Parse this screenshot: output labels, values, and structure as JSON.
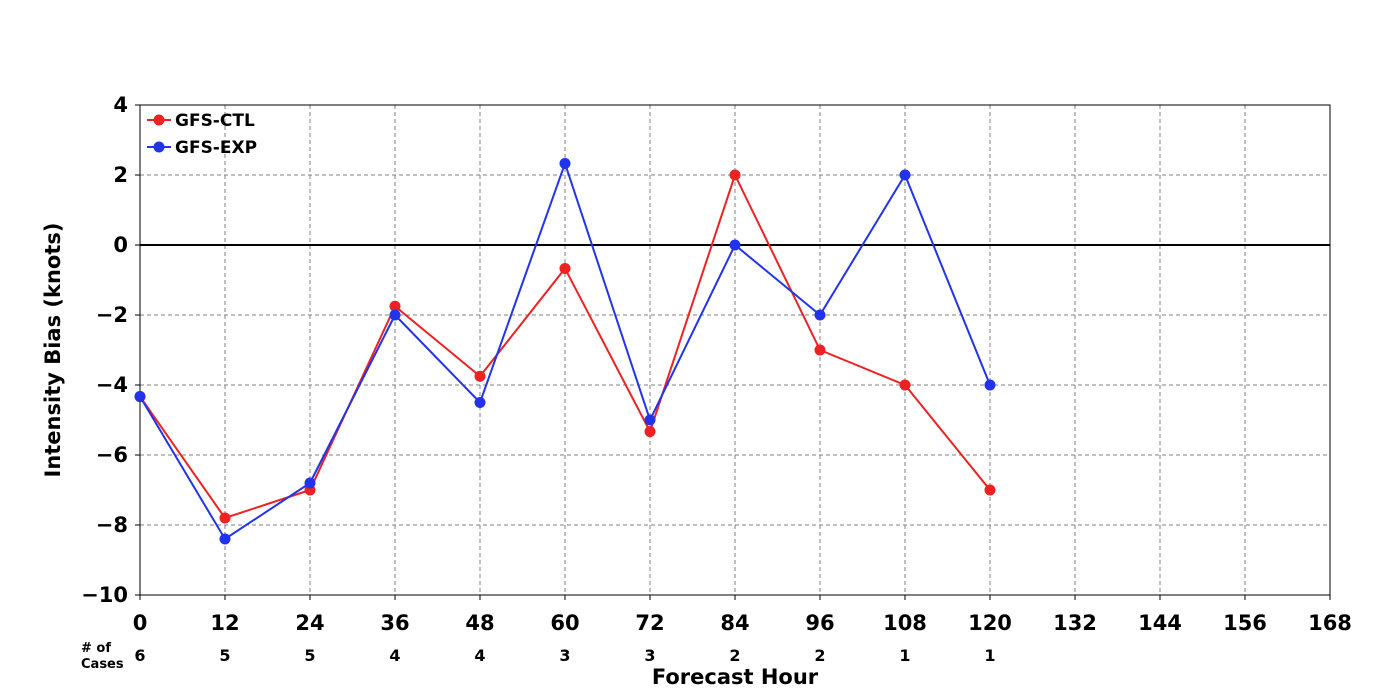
{
  "chart_data": {
    "type": "line",
    "xlabel": "Forecast Hour",
    "ylabel": "Intensity Bias (knots)",
    "xlim": [
      0,
      168
    ],
    "ylim": [
      -10,
      4
    ],
    "x_ticks": [
      0,
      12,
      24,
      36,
      48,
      60,
      72,
      84,
      96,
      108,
      120,
      132,
      144,
      156,
      168
    ],
    "y_ticks": [
      4,
      2,
      0,
      -2,
      -4,
      -6,
      -8,
      -10
    ],
    "x_tick_labels": [
      "0",
      "12",
      "24",
      "36",
      "48",
      "60",
      "72",
      "84",
      "96",
      "108",
      "120",
      "132",
      "144",
      "156",
      "168"
    ],
    "y_tick_labels": [
      "4",
      "2",
      "0",
      "−2",
      "−4",
      "−6",
      "−8",
      "−10"
    ],
    "grid": true,
    "zero_line": true,
    "legend_position": "top-left",
    "cases_label_line1": "# of",
    "cases_label_line2": "Cases",
    "cases": [
      {
        "x": 0,
        "n": "6"
      },
      {
        "x": 12,
        "n": "5"
      },
      {
        "x": 24,
        "n": "5"
      },
      {
        "x": 36,
        "n": "4"
      },
      {
        "x": 48,
        "n": "4"
      },
      {
        "x": 60,
        "n": "3"
      },
      {
        "x": 72,
        "n": "3"
      },
      {
        "x": 84,
        "n": "2"
      },
      {
        "x": 96,
        "n": "2"
      },
      {
        "x": 108,
        "n": "1"
      },
      {
        "x": 120,
        "n": "1"
      }
    ],
    "x": [
      0,
      12,
      24,
      36,
      48,
      60,
      72,
      84,
      96,
      108,
      120
    ],
    "series": [
      {
        "name": "GFS-CTL",
        "color": "#ee2222",
        "values": [
          -4.33,
          -7.8,
          -7.0,
          -1.75,
          -3.75,
          -0.67,
          -5.33,
          2.0,
          -3.0,
          -4.0,
          -7.0
        ]
      },
      {
        "name": "GFS-EXP",
        "color": "#2233ee",
        "values": [
          -4.33,
          -8.4,
          -6.8,
          -2.0,
          -4.5,
          2.33,
          -5.0,
          0.0,
          -2.0,
          2.0,
          -4.0
        ]
      }
    ]
  }
}
